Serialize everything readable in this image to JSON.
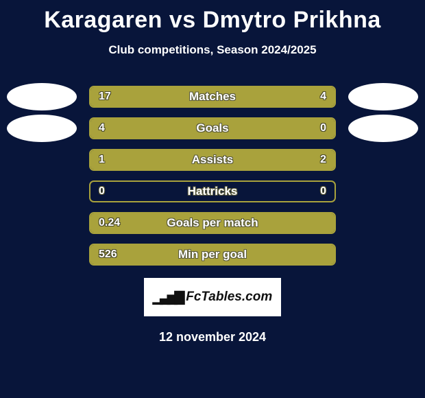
{
  "title": "Karagaren vs Dmytro Prikhna",
  "subtitle": "Club competitions, Season 2024/2025",
  "colors": {
    "background": "#08153a",
    "bar_border": "#a9a23c",
    "bar_fill": "#a9a23c",
    "bar_empty": "#08153a",
    "text": "#ffffff",
    "avatar": "#ffffff"
  },
  "rows": [
    {
      "label": "Matches",
      "left": "17",
      "right": "4",
      "left_pct": 80,
      "right_pct": 20,
      "show_avatars": true
    },
    {
      "label": "Goals",
      "left": "4",
      "right": "0",
      "left_pct": 100,
      "right_pct": 0,
      "show_avatars": true
    },
    {
      "label": "Assists",
      "left": "1",
      "right": "2",
      "left_pct": 33,
      "right_pct": 67,
      "show_avatars": false
    },
    {
      "label": "Hattricks",
      "left": "0",
      "right": "0",
      "left_pct": 0,
      "right_pct": 0,
      "show_avatars": false
    },
    {
      "label": "Goals per match",
      "left": "0.24",
      "right": "",
      "left_pct": 100,
      "right_pct": 0,
      "show_avatars": false
    },
    {
      "label": "Min per goal",
      "left": "526",
      "right": "",
      "left_pct": 100,
      "right_pct": 0,
      "show_avatars": false
    }
  ],
  "branding": "FcTables.com",
  "footer_date": "12 november 2024",
  "fontsize": {
    "title": 34,
    "subtitle": 17,
    "bar_label": 17,
    "bar_value": 16,
    "footer": 18
  }
}
